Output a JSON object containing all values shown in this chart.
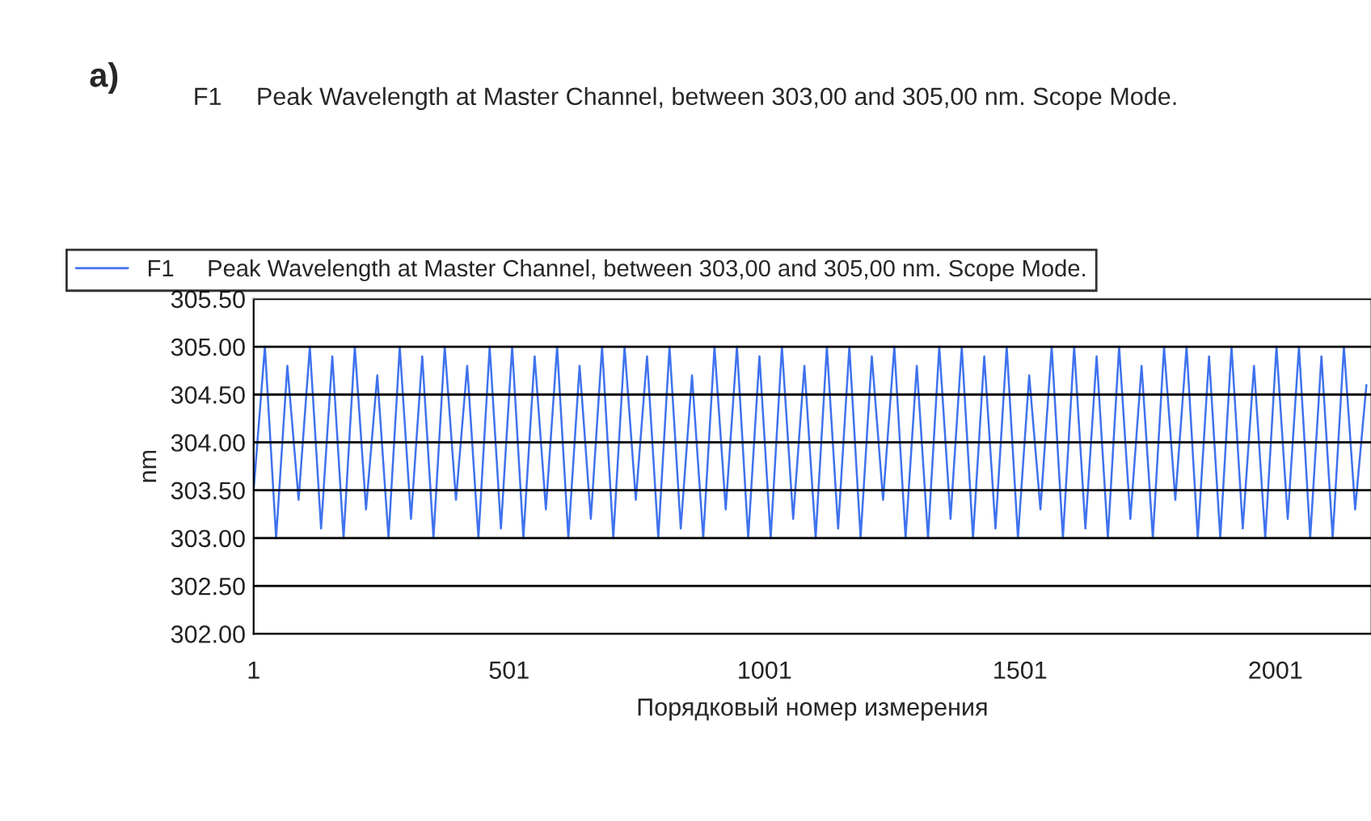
{
  "chart_data": {
    "type": "line",
    "title": "F1     Peak Wavelength at Master Channel, between 303,00 and 305,00 nm. Scope Mode.",
    "xlabel": "Порядковый номер измерения",
    "ylabel": "nm",
    "annotations": [
      "a)"
    ],
    "x": [
      1,
      23,
      45,
      67,
      89,
      111,
      133,
      155,
      177,
      199,
      221,
      243,
      265,
      287,
      309,
      331,
      353,
      375,
      397,
      419,
      441,
      463,
      485,
      507,
      529,
      551,
      573,
      595,
      617,
      639,
      661,
      683,
      705,
      727,
      749,
      771,
      793,
      815,
      837,
      859,
      881,
      903,
      925,
      947,
      969,
      991,
      1013,
      1035,
      1057,
      1079,
      1101,
      1123,
      1145,
      1167,
      1189,
      1211,
      1233,
      1255,
      1277,
      1299,
      1321,
      1343,
      1365,
      1387,
      1409,
      1431,
      1453,
      1475,
      1497,
      1519,
      1541,
      1563,
      1585,
      1607,
      1629,
      1651,
      1673,
      1695,
      1717,
      1739,
      1761,
      1783,
      1805,
      1827,
      1849,
      1871,
      1893,
      1915,
      1937,
      1959,
      1981,
      2003,
      2025,
      2047,
      2069,
      2091,
      2113,
      2135,
      2157,
      2179
    ],
    "series": [
      {
        "name": "F1     Peak Wavelength at Master Channel, between 303,00 and 305,00 nm. Scope Mode.",
        "color": "#3f72ee",
        "values": [
          303.5,
          305.0,
          303.0,
          304.8,
          303.4,
          305.0,
          303.1,
          304.9,
          303.0,
          305.0,
          303.3,
          304.7,
          303.0,
          305.0,
          303.2,
          304.9,
          303.0,
          305.0,
          303.4,
          304.8,
          303.0,
          305.0,
          303.1,
          305.0,
          303.0,
          304.9,
          303.3,
          305.0,
          303.0,
          304.8,
          303.2,
          305.0,
          303.0,
          305.0,
          303.4,
          304.9,
          303.0,
          305.0,
          303.1,
          304.7,
          303.0,
          305.0,
          303.3,
          305.0,
          303.0,
          304.9,
          303.0,
          305.0,
          303.2,
          304.8,
          303.0,
          305.0,
          303.1,
          305.0,
          303.0,
          304.9,
          303.4,
          305.0,
          303.0,
          304.8,
          303.0,
          305.0,
          303.2,
          305.0,
          303.0,
          304.9,
          303.1,
          305.0,
          303.0,
          304.7,
          303.3,
          305.0,
          303.0,
          305.0,
          303.1,
          304.9,
          303.0,
          305.0,
          303.2,
          304.8,
          303.0,
          305.0,
          303.4,
          305.0,
          303.0,
          304.9,
          303.0,
          305.0,
          303.1,
          304.8,
          303.0,
          305.0,
          303.2,
          305.0,
          303.0,
          304.9,
          303.0,
          305.0,
          303.3,
          304.6
        ]
      }
    ],
    "xlim": [
      1,
      2188
    ],
    "xticks": [
      1,
      501,
      1001,
      1501,
      2001
    ],
    "ylim": [
      302.0,
      305.5
    ],
    "yticks": [
      {
        "value": 302.0,
        "label": "302.00"
      },
      {
        "value": 302.5,
        "label": "302.50"
      },
      {
        "value": 303.0,
        "label": "303.00"
      },
      {
        "value": 303.5,
        "label": "303.50"
      },
      {
        "value": 304.0,
        "label": "304.00"
      },
      {
        "value": 304.5,
        "label": "304.50"
      },
      {
        "value": 305.0,
        "label": "305.00"
      },
      {
        "value": 305.5,
        "label": "305.50"
      }
    ],
    "grid": "y",
    "legend": "top",
    "marker": "none",
    "line_style": "solid"
  }
}
